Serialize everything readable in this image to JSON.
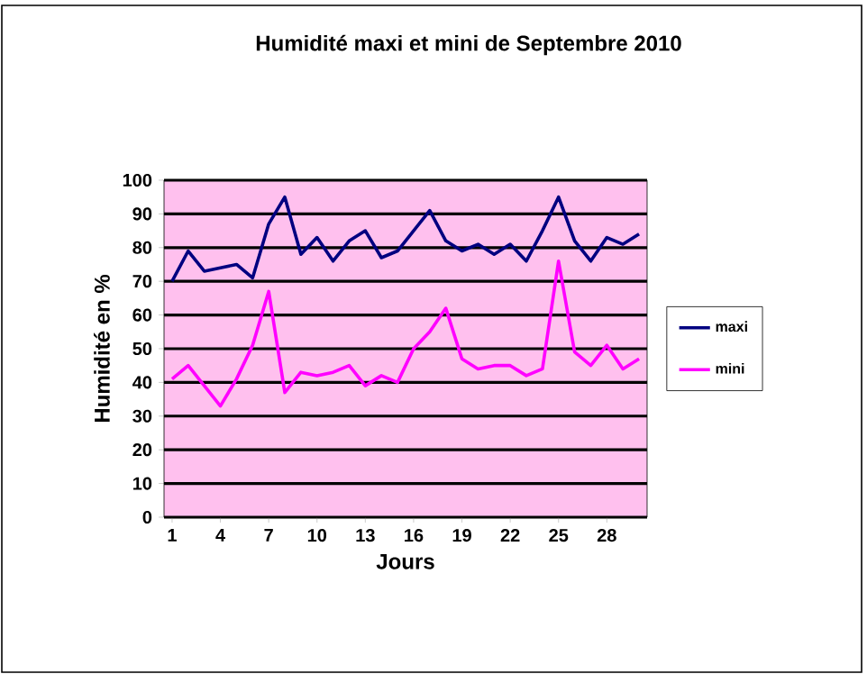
{
  "chart_data": {
    "type": "line",
    "title": "Humidité maxi et mini de Septembre 2010",
    "xlabel": "Jours",
    "ylabel": "Humidité en %",
    "categories": [
      "1",
      null,
      null,
      "4",
      null,
      null,
      "7",
      null,
      null,
      "10",
      null,
      null,
      "13",
      null,
      null,
      "16",
      null,
      null,
      "19",
      null,
      null,
      "22",
      null,
      null,
      "25",
      null,
      null,
      "28",
      null,
      null
    ],
    "series": [
      {
        "name": "maxi",
        "color": "#000080",
        "values": [
          70,
          79,
          73,
          74,
          75,
          71,
          87,
          95,
          78,
          83,
          76,
          82,
          85,
          77,
          79,
          85,
          91,
          82,
          79,
          81,
          78,
          81,
          76,
          85,
          95,
          82,
          76,
          83,
          81,
          84
        ]
      },
      {
        "name": "mini",
        "color": "#ff00ff",
        "values": [
          41,
          45,
          39,
          33,
          41,
          51,
          67,
          37,
          43,
          42,
          43,
          45,
          39,
          42,
          40,
          50,
          55,
          62,
          47,
          44,
          45,
          45,
          42,
          44,
          76,
          49,
          45,
          51,
          44,
          47
        ]
      }
    ],
    "ylim": [
      0,
      100
    ],
    "yticks": [
      0,
      10,
      20,
      30,
      40,
      50,
      60,
      70,
      80,
      90,
      100
    ],
    "grid": "y",
    "legend": "right",
    "marker": "none",
    "line_style": "solid"
  }
}
